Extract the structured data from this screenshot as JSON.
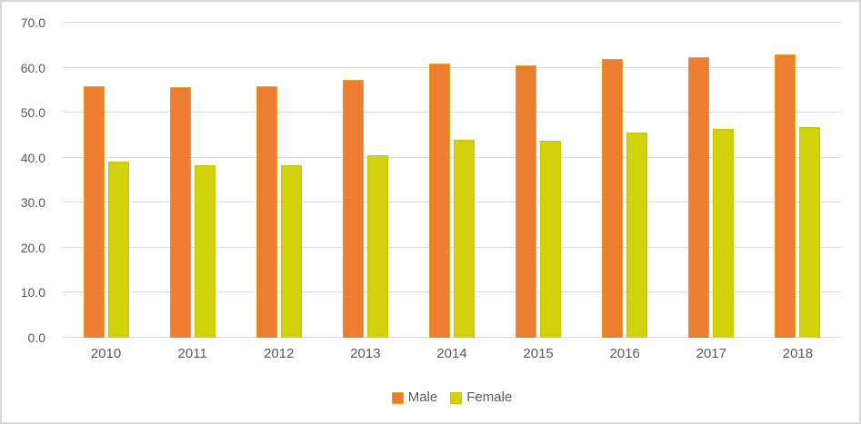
{
  "chart_data": {
    "type": "bar",
    "title": "",
    "categories": [
      "2010",
      "2011",
      "2012",
      "2013",
      "2014",
      "2015",
      "2016",
      "2017",
      "2018"
    ],
    "series": [
      {
        "name": "Male",
        "color": "#ED7D31",
        "border_color": "#E6A124",
        "values": [
          55.8,
          55.7,
          55.9,
          57.3,
          60.9,
          60.5,
          61.9,
          62.3,
          62.9
        ]
      },
      {
        "name": "Female",
        "color": "#D1D10C",
        "border_color": "#C5C500",
        "values": [
          39.2,
          38.3,
          38.4,
          40.6,
          44.0,
          43.8,
          45.6,
          46.4,
          46.8
        ]
      }
    ],
    "ylim": [
      0,
      70
    ],
    "ytick_step": 10,
    "ytick_labels": [
      "0.0",
      "10.0",
      "20.0",
      "30.0",
      "40.0",
      "50.0",
      "60.0",
      "70.0"
    ],
    "grid": true,
    "legend_position": "bottom",
    "colors": {
      "gridline": "#d9d9d9",
      "axis_text": "#595959",
      "chart_border": "#d8d8d8",
      "background": "#ffffff"
    }
  }
}
